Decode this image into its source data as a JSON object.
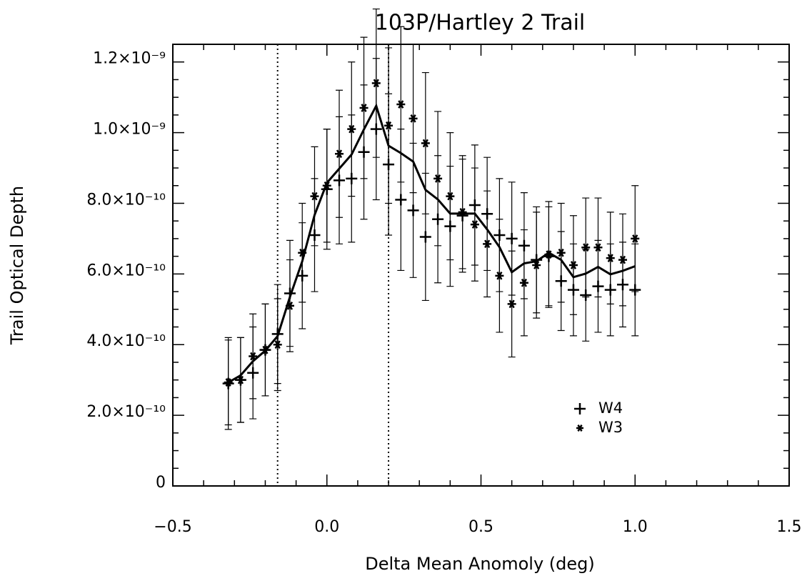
{
  "chart_data": {
    "type": "scatter",
    "title": "103P/Hartley 2 Trail",
    "xlabel": "Delta Mean Anomoly (deg)",
    "ylabel": "Trail Optical Depth",
    "x": [
      -0.32,
      -0.28,
      -0.24,
      -0.2,
      -0.16,
      -0.12,
      -0.08,
      -0.04,
      0.0,
      0.04,
      0.08,
      0.12,
      0.16,
      0.2,
      0.24,
      0.28,
      0.32,
      0.36,
      0.4,
      0.44,
      0.48,
      0.52,
      0.56,
      0.6,
      0.64,
      0.68,
      0.72,
      0.76,
      0.8,
      0.84,
      0.88,
      0.92,
      0.96,
      1.0
    ],
    "series": [
      {
        "name": "W4",
        "marker": "plus",
        "color": "#000",
        "values": [
          2.9e-10,
          3e-10,
          3.2e-10,
          3.85e-10,
          4.3e-10,
          5.45e-10,
          5.95e-10,
          7.1e-10,
          8.4e-10,
          8.65e-10,
          8.7e-10,
          9.45e-10,
          1.01e-09,
          9.1e-10,
          8.1e-10,
          7.8e-10,
          7.05e-10,
          7.55e-10,
          7.35e-10,
          7.65e-10,
          7.95e-10,
          7.7e-10,
          7.1e-10,
          7e-10,
          6.8e-10,
          6.4e-10,
          6.5e-10,
          5.8e-10,
          5.55e-10,
          5.4e-10,
          5.65e-10,
          5.55e-10,
          5.7e-10,
          5.55e-10
        ],
        "errors": [
          1.3e-10,
          1.2e-10,
          1.3e-10,
          1.3e-10,
          1.4e-10,
          1.5e-10,
          1.5e-10,
          1.6e-10,
          1.7e-10,
          1.8e-10,
          1.8e-10,
          1.9e-10,
          2e-10,
          2e-10,
          2e-10,
          1.9e-10,
          1.8e-10,
          1.8e-10,
          1.7e-10,
          1.6e-10,
          1.7e-10,
          1.6e-10,
          1.6e-10,
          1.6e-10,
          1.5e-10,
          1.5e-10,
          1.4e-10,
          1.4e-10,
          1.3e-10,
          1.3e-10,
          1.3e-10,
          1.3e-10,
          1.2e-10,
          1.3e-10
        ]
      },
      {
        "name": "W3",
        "marker": "asterisk",
        "color": "#000",
        "values": [
          2.93e-10,
          3e-10,
          3.67e-10,
          3.85e-10,
          4e-10,
          5.1e-10,
          6.6e-10,
          8.2e-10,
          8.5e-10,
          9.4e-10,
          1.01e-09,
          1.07e-09,
          1.14e-09,
          1.02e-09,
          1.08e-09,
          1.04e-09,
          9.7e-10,
          8.7e-10,
          8.2e-10,
          7.75e-10,
          7.4e-10,
          6.85e-10,
          5.95e-10,
          5.15e-10,
          5.75e-10,
          6.25e-10,
          6.55e-10,
          6.6e-10,
          6.25e-10,
          6.75e-10,
          6.75e-10,
          6.45e-10,
          6.4e-10,
          7e-10
        ],
        "errors": [
          1.2e-10,
          1.2e-10,
          1.2e-10,
          1.3e-10,
          1.3e-10,
          1.3e-10,
          1.4e-10,
          1.4e-10,
          1.6e-10,
          1.8e-10,
          1.9e-10,
          2e-10,
          2.1e-10,
          2.2e-10,
          2.2e-10,
          2.1e-10,
          2e-10,
          1.9e-10,
          1.8e-10,
          1.6e-10,
          1.6e-10,
          1.5e-10,
          1.6e-10,
          1.5e-10,
          1.5e-10,
          1.5e-10,
          1.5e-10,
          1.4e-10,
          1.4e-10,
          1.4e-10,
          1.4e-10,
          1.3e-10,
          1.3e-10,
          1.5e-10
        ]
      },
      {
        "marker": "line",
        "color": "#000",
        "values": [
          2.93e-10,
          3.13e-10,
          3.53e-10,
          3.83e-10,
          4.24e-10,
          5.35e-10,
          6.36e-10,
          7.67e-10,
          8.58e-10,
          8.98e-10,
          9.38e-10,
          1.009e-09,
          1.076e-09,
          9.63e-10,
          9.42e-10,
          9.18e-10,
          8.38e-10,
          8.11e-10,
          7.71e-10,
          7.71e-10,
          7.71e-10,
          7.26e-10,
          6.76e-10,
          6.05e-10,
          6.3e-10,
          6.36e-10,
          6.6e-10,
          6.4e-10,
          5.91e-10,
          6.01e-10,
          6.2e-10,
          5.99e-10,
          6.09e-10,
          6.22e-10
        ]
      }
    ],
    "vlines": [
      -0.16,
      0.2
    ],
    "xlim": [
      -0.5,
      1.5
    ],
    "xticks": [
      {
        "value": -0.5,
        "label": "−0.5"
      },
      {
        "value": 0,
        "label": "0.0"
      },
      0.5,
      {
        "value": 1,
        "label": "1.0"
      },
      1.5
    ],
    "xminor": 5,
    "ylim": [
      0,
      1.25e-09
    ],
    "yticks": [
      0,
      {
        "value": 2e-10,
        "label": "2.0×10⁻¹⁰"
      },
      {
        "value": 4e-10,
        "label": "4.0×10⁻¹⁰"
      },
      {
        "value": 6e-10,
        "label": "6.0×10⁻¹⁰"
      },
      {
        "value": 8e-10,
        "label": "8.0×10⁻¹⁰"
      },
      {
        "value": 1e-09,
        "label": "1.0×10⁻⁹"
      },
      {
        "value": 1.2e-09,
        "label": "1.2×10⁻⁹"
      }
    ],
    "yminor": 4,
    "legend": "lower right",
    "grid": false
  }
}
